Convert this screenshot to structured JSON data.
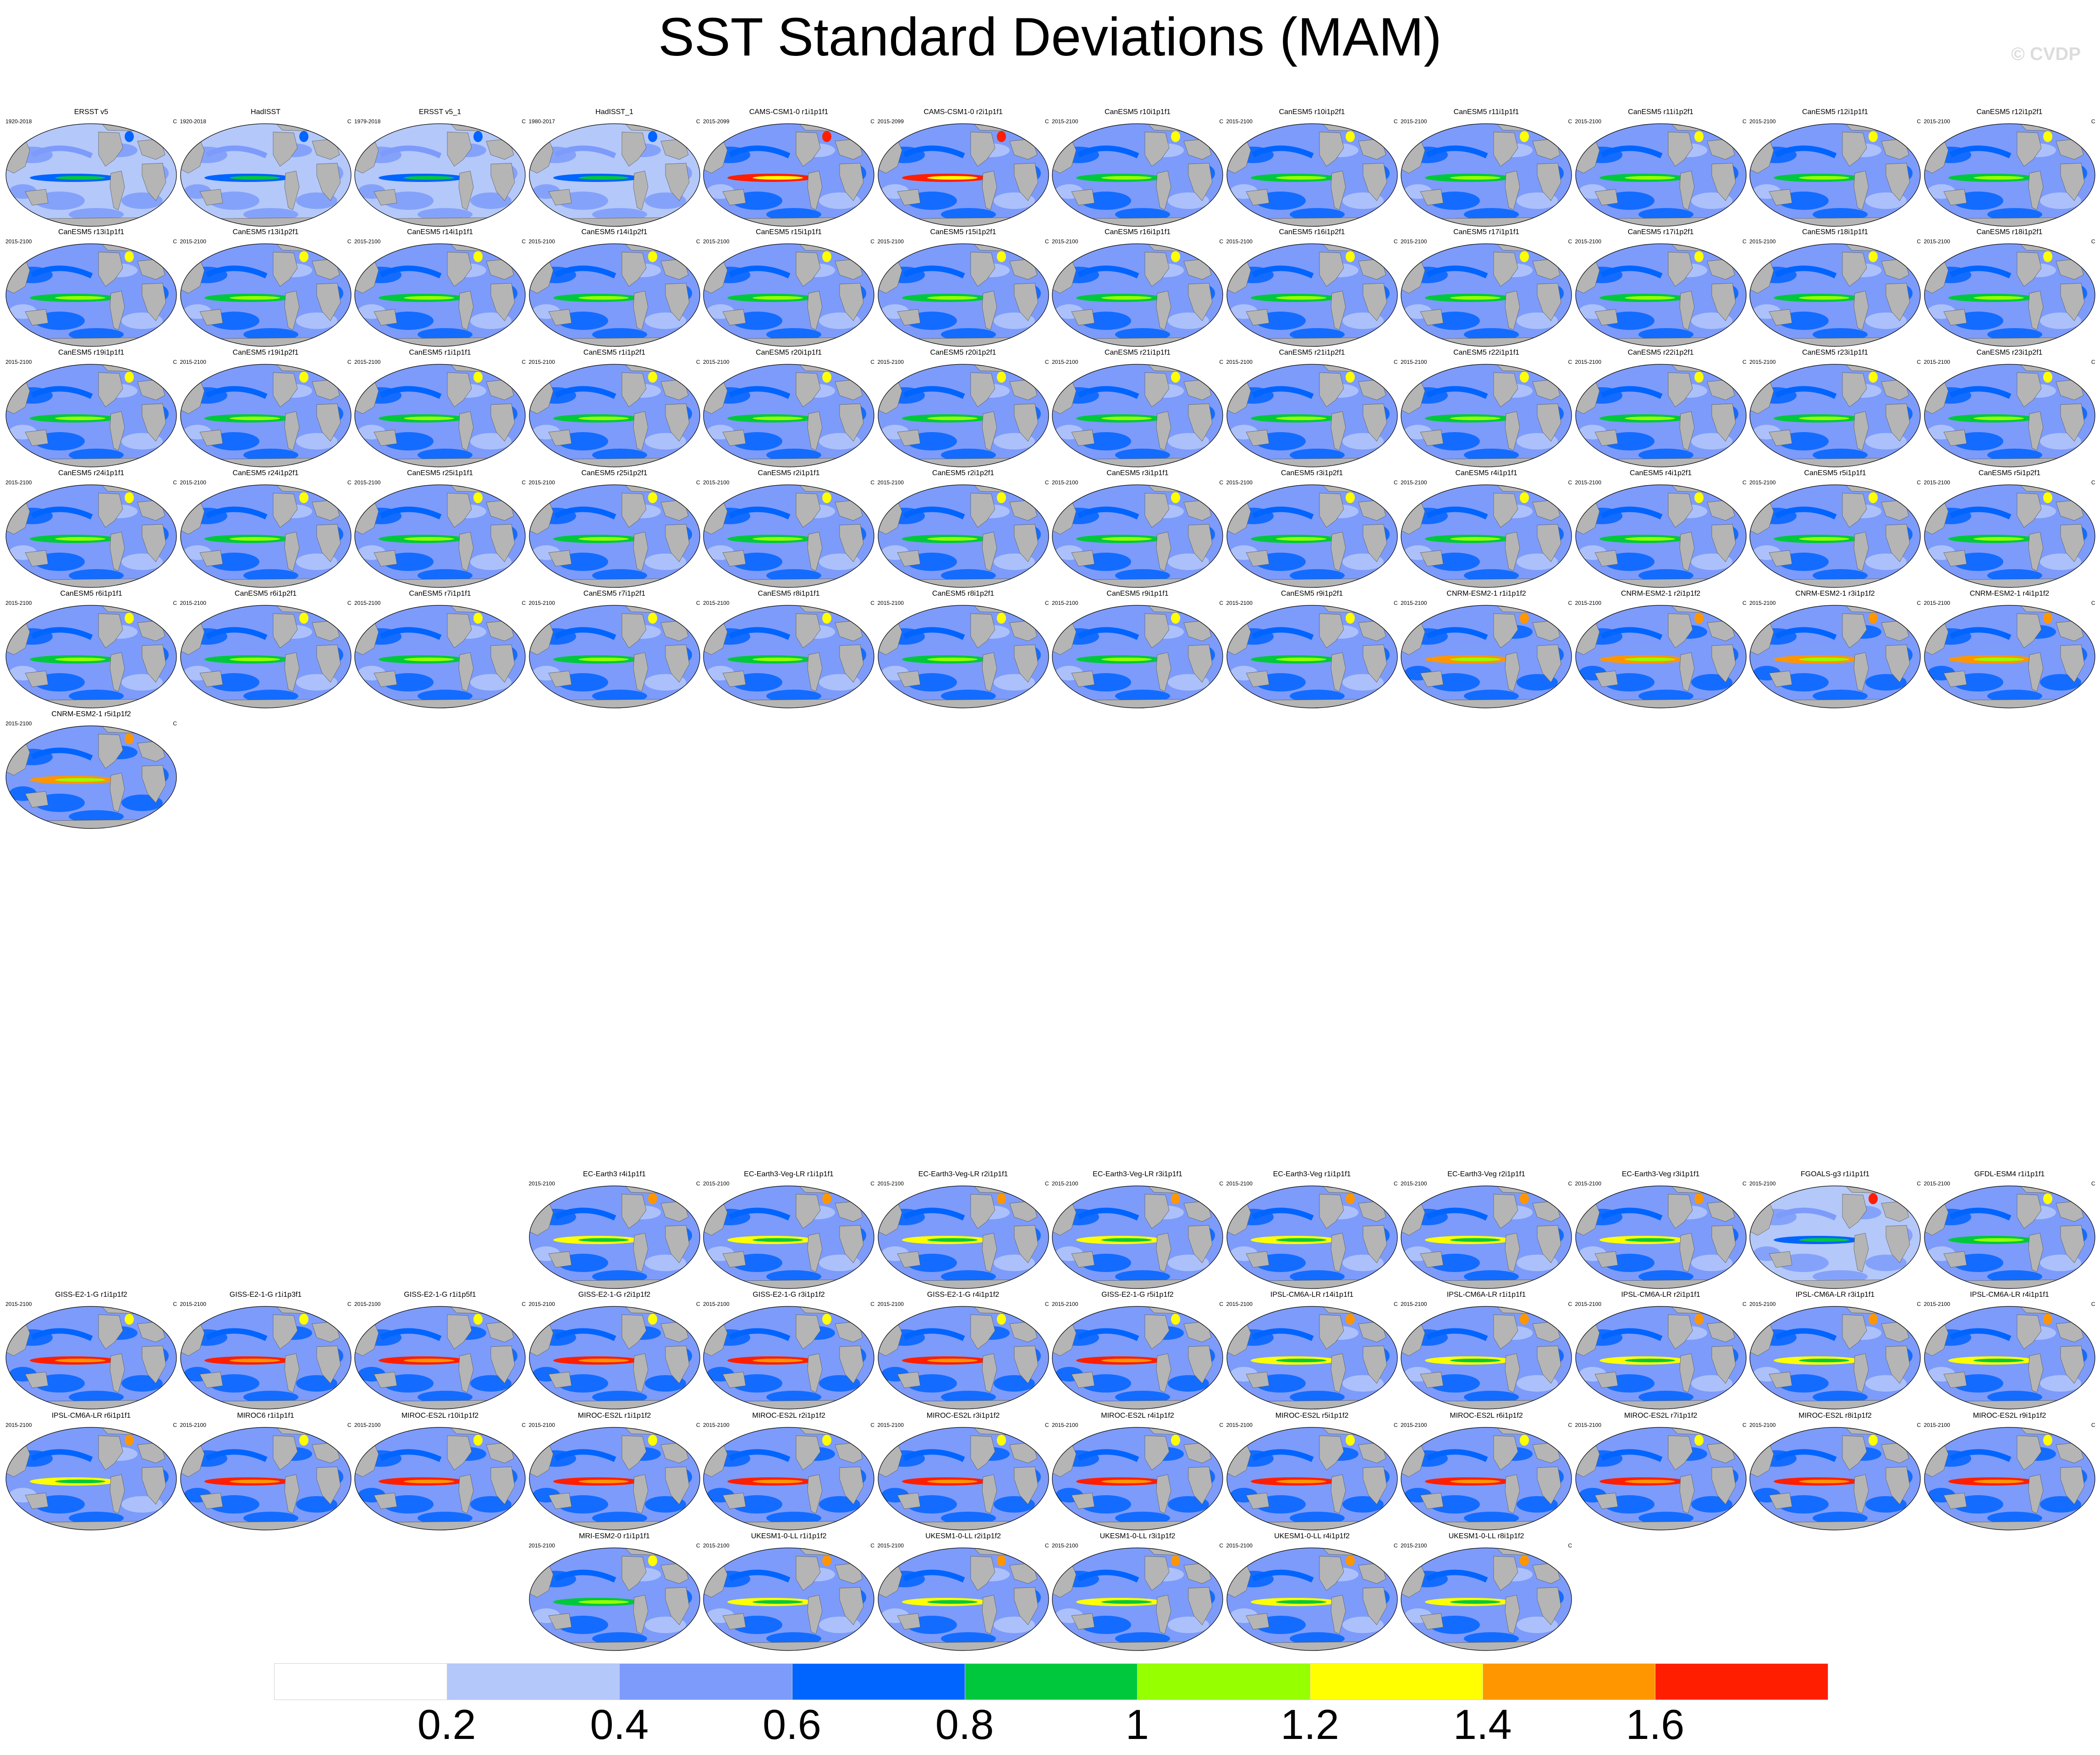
{
  "title": "SST Standard Deviations (MAM)",
  "watermark": "© CVDP",
  "units": "C",
  "legend": {
    "colors": [
      "#ffffff",
      "#b4c8fa",
      "#7d9bfa",
      "#0064ff",
      "#00c83c",
      "#96ff00",
      "#ffff00",
      "#ff9600",
      "#ff1e00"
    ],
    "labels": [
      "0.2",
      "0.4",
      "0.6",
      "0.8",
      "1",
      "1.2",
      "1.4",
      "1.6"
    ]
  },
  "panels": [
    {
      "title": "ERSST v5",
      "period": "1920-2018",
      "style": 0,
      "row": 0,
      "col": 0
    },
    {
      "title": "HadISST",
      "period": "1920-2018",
      "style": 0,
      "row": 0,
      "col": 1
    },
    {
      "title": "ERSST v5_1",
      "period": "1979-2018",
      "style": 0,
      "row": 0,
      "col": 2
    },
    {
      "title": "HadISST_1",
      "period": "1980-2017",
      "style": 0,
      "row": 0,
      "col": 3
    },
    {
      "title": "CAMS-CSM1-0 r1i1p1f1",
      "period": "2015-2099",
      "style": 2,
      "row": 0,
      "col": 4
    },
    {
      "title": "CAMS-CSM1-0 r2i1p1f1",
      "period": "2015-2099",
      "style": 2,
      "row": 0,
      "col": 5
    },
    {
      "title": "CanESM5 r10i1p1f1",
      "period": "2015-2100",
      "style": 1,
      "row": 0,
      "col": 6
    },
    {
      "title": "CanESM5 r10i1p2f1",
      "period": "2015-2100",
      "style": 1,
      "row": 0,
      "col": 7
    },
    {
      "title": "CanESM5 r11i1p1f1",
      "period": "2015-2100",
      "style": 1,
      "row": 0,
      "col": 8
    },
    {
      "title": "CanESM5 r11i1p2f1",
      "period": "2015-2100",
      "style": 1,
      "row": 0,
      "col": 9
    },
    {
      "title": "CanESM5 r12i1p1f1",
      "period": "2015-2100",
      "style": 1,
      "row": 0,
      "col": 10
    },
    {
      "title": "CanESM5 r12i1p2f1",
      "period": "2015-2100",
      "style": 1,
      "row": 0,
      "col": 11
    },
    {
      "title": "CanESM5 r13i1p1f1",
      "period": "2015-2100",
      "style": 1,
      "row": 1,
      "col": 0
    },
    {
      "title": "CanESM5 r13i1p2f1",
      "period": "2015-2100",
      "style": 1,
      "row": 1,
      "col": 1
    },
    {
      "title": "CanESM5 r14i1p1f1",
      "period": "2015-2100",
      "style": 1,
      "row": 1,
      "col": 2
    },
    {
      "title": "CanESM5 r14i1p2f1",
      "period": "2015-2100",
      "style": 1,
      "row": 1,
      "col": 3
    },
    {
      "title": "CanESM5 r15i1p1f1",
      "period": "2015-2100",
      "style": 1,
      "row": 1,
      "col": 4
    },
    {
      "title": "CanESM5 r15i1p2f1",
      "period": "2015-2100",
      "style": 1,
      "row": 1,
      "col": 5
    },
    {
      "title": "CanESM5 r16i1p1f1",
      "period": "2015-2100",
      "style": 1,
      "row": 1,
      "col": 6
    },
    {
      "title": "CanESM5 r16i1p2f1",
      "period": "2015-2100",
      "style": 1,
      "row": 1,
      "col": 7
    },
    {
      "title": "CanESM5 r17i1p1f1",
      "period": "2015-2100",
      "style": 1,
      "row": 1,
      "col": 8
    },
    {
      "title": "CanESM5 r17i1p2f1",
      "period": "2015-2100",
      "style": 1,
      "row": 1,
      "col": 9
    },
    {
      "title": "CanESM5 r18i1p1f1",
      "period": "2015-2100",
      "style": 1,
      "row": 1,
      "col": 10
    },
    {
      "title": "CanESM5 r18i1p2f1",
      "period": "2015-2100",
      "style": 1,
      "row": 1,
      "col": 11
    },
    {
      "title": "CanESM5 r19i1p1f1",
      "period": "2015-2100",
      "style": 1,
      "row": 2,
      "col": 0
    },
    {
      "title": "CanESM5 r19i1p2f1",
      "period": "2015-2100",
      "style": 1,
      "row": 2,
      "col": 1
    },
    {
      "title": "CanESM5 r1i1p1f1",
      "period": "2015-2100",
      "style": 1,
      "row": 2,
      "col": 2
    },
    {
      "title": "CanESM5 r1i1p2f1",
      "period": "2015-2100",
      "style": 1,
      "row": 2,
      "col": 3
    },
    {
      "title": "CanESM5 r20i1p1f1",
      "period": "2015-2100",
      "style": 1,
      "row": 2,
      "col": 4
    },
    {
      "title": "CanESM5 r20i1p2f1",
      "period": "2015-2100",
      "style": 1,
      "row": 2,
      "col": 5
    },
    {
      "title": "CanESM5 r21i1p1f1",
      "period": "2015-2100",
      "style": 1,
      "row": 2,
      "col": 6
    },
    {
      "title": "CanESM5 r21i1p2f1",
      "period": "2015-2100",
      "style": 1,
      "row": 2,
      "col": 7
    },
    {
      "title": "CanESM5 r22i1p1f1",
      "period": "2015-2100",
      "style": 1,
      "row": 2,
      "col": 8
    },
    {
      "title": "CanESM5 r22i1p2f1",
      "period": "2015-2100",
      "style": 1,
      "row": 2,
      "col": 9
    },
    {
      "title": "CanESM5 r23i1p1f1",
      "period": "2015-2100",
      "style": 1,
      "row": 2,
      "col": 10
    },
    {
      "title": "CanESM5 r23i1p2f1",
      "period": "2015-2100",
      "style": 1,
      "row": 2,
      "col": 11
    },
    {
      "title": "CanESM5 r24i1p1f1",
      "period": "2015-2100",
      "style": 1,
      "row": 3,
      "col": 0
    },
    {
      "title": "CanESM5 r24i1p2f1",
      "period": "2015-2100",
      "style": 1,
      "row": 3,
      "col": 1
    },
    {
      "title": "CanESM5 r25i1p1f1",
      "period": "2015-2100",
      "style": 1,
      "row": 3,
      "col": 2
    },
    {
      "title": "CanESM5 r25i1p2f1",
      "period": "2015-2100",
      "style": 1,
      "row": 3,
      "col": 3
    },
    {
      "title": "CanESM5 r2i1p1f1",
      "period": "2015-2100",
      "style": 1,
      "row": 3,
      "col": 4
    },
    {
      "title": "CanESM5 r2i1p2f1",
      "period": "2015-2100",
      "style": 1,
      "row": 3,
      "col": 5
    },
    {
      "title": "CanESM5 r3i1p1f1",
      "period": "2015-2100",
      "style": 1,
      "row": 3,
      "col": 6
    },
    {
      "title": "CanESM5 r3i1p2f1",
      "period": "2015-2100",
      "style": 1,
      "row": 3,
      "col": 7
    },
    {
      "title": "CanESM5 r4i1p1f1",
      "period": "2015-2100",
      "style": 1,
      "row": 3,
      "col": 8
    },
    {
      "title": "CanESM5 r4i1p2f1",
      "period": "2015-2100",
      "style": 1,
      "row": 3,
      "col": 9
    },
    {
      "title": "CanESM5 r5i1p1f1",
      "period": "2015-2100",
      "style": 1,
      "row": 3,
      "col": 10
    },
    {
      "title": "CanESM5 r5i1p2f1",
      "period": "2015-2100",
      "style": 1,
      "row": 3,
      "col": 11
    },
    {
      "title": "CanESM5 r6i1p1f1",
      "period": "2015-2100",
      "style": 1,
      "row": 4,
      "col": 0
    },
    {
      "title": "CanESM5 r6i1p2f1",
      "period": "2015-2100",
      "style": 1,
      "row": 4,
      "col": 1
    },
    {
      "title": "CanESM5 r7i1p1f1",
      "period": "2015-2100",
      "style": 1,
      "row": 4,
      "col": 2
    },
    {
      "title": "CanESM5 r7i1p2f1",
      "period": "2015-2100",
      "style": 1,
      "row": 4,
      "col": 3
    },
    {
      "title": "CanESM5 r8i1p1f1",
      "period": "2015-2100",
      "style": 1,
      "row": 4,
      "col": 4
    },
    {
      "title": "CanESM5 r8i1p2f1",
      "period": "2015-2100",
      "style": 1,
      "row": 4,
      "col": 5
    },
    {
      "title": "CanESM5 r9i1p1f1",
      "period": "2015-2100",
      "style": 1,
      "row": 4,
      "col": 6
    },
    {
      "title": "CanESM5 r9i1p2f1",
      "period": "2015-2100",
      "style": 1,
      "row": 4,
      "col": 7
    },
    {
      "title": "CNRM-ESM2-1 r1i1p1f2",
      "period": "2015-2100",
      "style": 3,
      "row": 4,
      "col": 8
    },
    {
      "title": "CNRM-ESM2-1 r2i1p1f2",
      "period": "2015-2100",
      "style": 3,
      "row": 4,
      "col": 9
    },
    {
      "title": "CNRM-ESM2-1 r3i1p1f2",
      "period": "2015-2100",
      "style": 3,
      "row": 4,
      "col": 10
    },
    {
      "title": "CNRM-ESM2-1 r4i1p1f2",
      "period": "2015-2100",
      "style": 3,
      "row": 4,
      "col": 11
    },
    {
      "title": "CNRM-ESM2-1 r5i1p1f2",
      "period": "2015-2100",
      "style": 3,
      "row": 5,
      "col": 0
    },
    {
      "title": "EC-Earth3 r4i1p1f1",
      "period": "2015-2100",
      "style": 4,
      "row": 9,
      "col": 3
    },
    {
      "title": "EC-Earth3-Veg-LR r1i1p1f1",
      "period": "2015-2100",
      "style": 4,
      "row": 9,
      "col": 4
    },
    {
      "title": "EC-Earth3-Veg-LR r2i1p1f1",
      "period": "2015-2100",
      "style": 4,
      "row": 9,
      "col": 5
    },
    {
      "title": "EC-Earth3-Veg-LR r3i1p1f1",
      "period": "2015-2100",
      "style": 4,
      "row": 9,
      "col": 6
    },
    {
      "title": "EC-Earth3-Veg r1i1p1f1",
      "period": "2015-2100",
      "style": 4,
      "row": 9,
      "col": 7
    },
    {
      "title": "EC-Earth3-Veg r2i1p1f1",
      "period": "2015-2100",
      "style": 4,
      "row": 9,
      "col": 8
    },
    {
      "title": "EC-Earth3-Veg r3i1p1f1",
      "period": "2015-2100",
      "style": 4,
      "row": 9,
      "col": 9
    },
    {
      "title": "FGOALS-g3 r1i1p1f1",
      "period": "2015-2100",
      "style": 6,
      "row": 9,
      "col": 10
    },
    {
      "title": "GFDL-ESM4 r1i1p1f1",
      "period": "2015-2100",
      "style": 1,
      "row": 9,
      "col": 11
    },
    {
      "title": "GISS-E2-1-G r1i1p1f2",
      "period": "2015-2100",
      "style": 5,
      "row": 10,
      "col": 0
    },
    {
      "title": "GISS-E2-1-G r1i1p3f1",
      "period": "2015-2100",
      "style": 5,
      "row": 10,
      "col": 1
    },
    {
      "title": "GISS-E2-1-G r1i1p5f1",
      "period": "2015-2100",
      "style": 5,
      "row": 10,
      "col": 2
    },
    {
      "title": "GISS-E2-1-G r2i1p1f2",
      "period": "2015-2100",
      "style": 5,
      "row": 10,
      "col": 3
    },
    {
      "title": "GISS-E2-1-G r3i1p1f2",
      "period": "2015-2100",
      "style": 5,
      "row": 10,
      "col": 4
    },
    {
      "title": "GISS-E2-1-G r4i1p1f2",
      "period": "2015-2100",
      "style": 5,
      "row": 10,
      "col": 5
    },
    {
      "title": "GISS-E2-1-G r5i1p1f2",
      "period": "2015-2100",
      "style": 5,
      "row": 10,
      "col": 6
    },
    {
      "title": "IPSL-CM6A-LR r14i1p1f1",
      "period": "2015-2100",
      "style": 4,
      "row": 10,
      "col": 7
    },
    {
      "title": "IPSL-CM6A-LR r1i1p1f1",
      "period": "2015-2100",
      "style": 4,
      "row": 10,
      "col": 8
    },
    {
      "title": "IPSL-CM6A-LR r2i1p1f1",
      "period": "2015-2100",
      "style": 4,
      "row": 10,
      "col": 9
    },
    {
      "title": "IPSL-CM6A-LR r3i1p1f1",
      "period": "2015-2100",
      "style": 4,
      "row": 10,
      "col": 10
    },
    {
      "title": "IPSL-CM6A-LR r4i1p1f1",
      "period": "2015-2100",
      "style": 4,
      "row": 10,
      "col": 11
    },
    {
      "title": "IPSL-CM6A-LR r6i1p1f1",
      "period": "2015-2100",
      "style": 4,
      "row": 11,
      "col": 0
    },
    {
      "title": "MIROC6 r1i1p1f1",
      "period": "2015-2100",
      "style": 5,
      "row": 11,
      "col": 1
    },
    {
      "title": "MIROC-ES2L r10i1p1f2",
      "period": "2015-2100",
      "style": 5,
      "row": 11,
      "col": 2
    },
    {
      "title": "MIROC-ES2L r1i1p1f2",
      "period": "2015-2100",
      "style": 5,
      "row": 11,
      "col": 3
    },
    {
      "title": "MIROC-ES2L r2i1p1f2",
      "period": "2015-2100",
      "style": 5,
      "row": 11,
      "col": 4
    },
    {
      "title": "MIROC-ES2L r3i1p1f2",
      "period": "2015-2100",
      "style": 5,
      "row": 11,
      "col": 5
    },
    {
      "title": "MIROC-ES2L r4i1p1f2",
      "period": "2015-2100",
      "style": 5,
      "row": 11,
      "col": 6
    },
    {
      "title": "MIROC-ES2L r5i1p1f2",
      "period": "2015-2100",
      "style": 5,
      "row": 11,
      "col": 7
    },
    {
      "title": "MIROC-ES2L r6i1p1f2",
      "period": "2015-2100",
      "style": 5,
      "row": 11,
      "col": 8
    },
    {
      "title": "MIROC-ES2L r7i1p1f2",
      "period": "2015-2100",
      "style": 5,
      "row": 11,
      "col": 9
    },
    {
      "title": "MIROC-ES2L r8i1p1f2",
      "period": "2015-2100",
      "style": 5,
      "row": 11,
      "col": 10
    },
    {
      "title": "MIROC-ES2L r9i1p1f2",
      "period": "2015-2100",
      "style": 5,
      "row": 11,
      "col": 11
    },
    {
      "title": "MRI-ESM2-0 r1i1p1f1",
      "period": "2015-2100",
      "style": 1,
      "row": 12,
      "col": 3
    },
    {
      "title": "UKESM1-0-LL r1i1p1f2",
      "period": "2015-2100",
      "style": 4,
      "row": 12,
      "col": 4
    },
    {
      "title": "UKESM1-0-LL r2i1p1f2",
      "period": "2015-2100",
      "style": 4,
      "row": 12,
      "col": 5
    },
    {
      "title": "UKESM1-0-LL r3i1p1f2",
      "period": "2015-2100",
      "style": 4,
      "row": 12,
      "col": 6
    },
    {
      "title": "UKESM1-0-LL r4i1p1f2",
      "period": "2015-2100",
      "style": 4,
      "row": 12,
      "col": 7
    },
    {
      "title": "UKESM1-0-LL r8i1p1f2",
      "period": "2015-2100",
      "style": 4,
      "row": 12,
      "col": 8
    }
  ]
}
